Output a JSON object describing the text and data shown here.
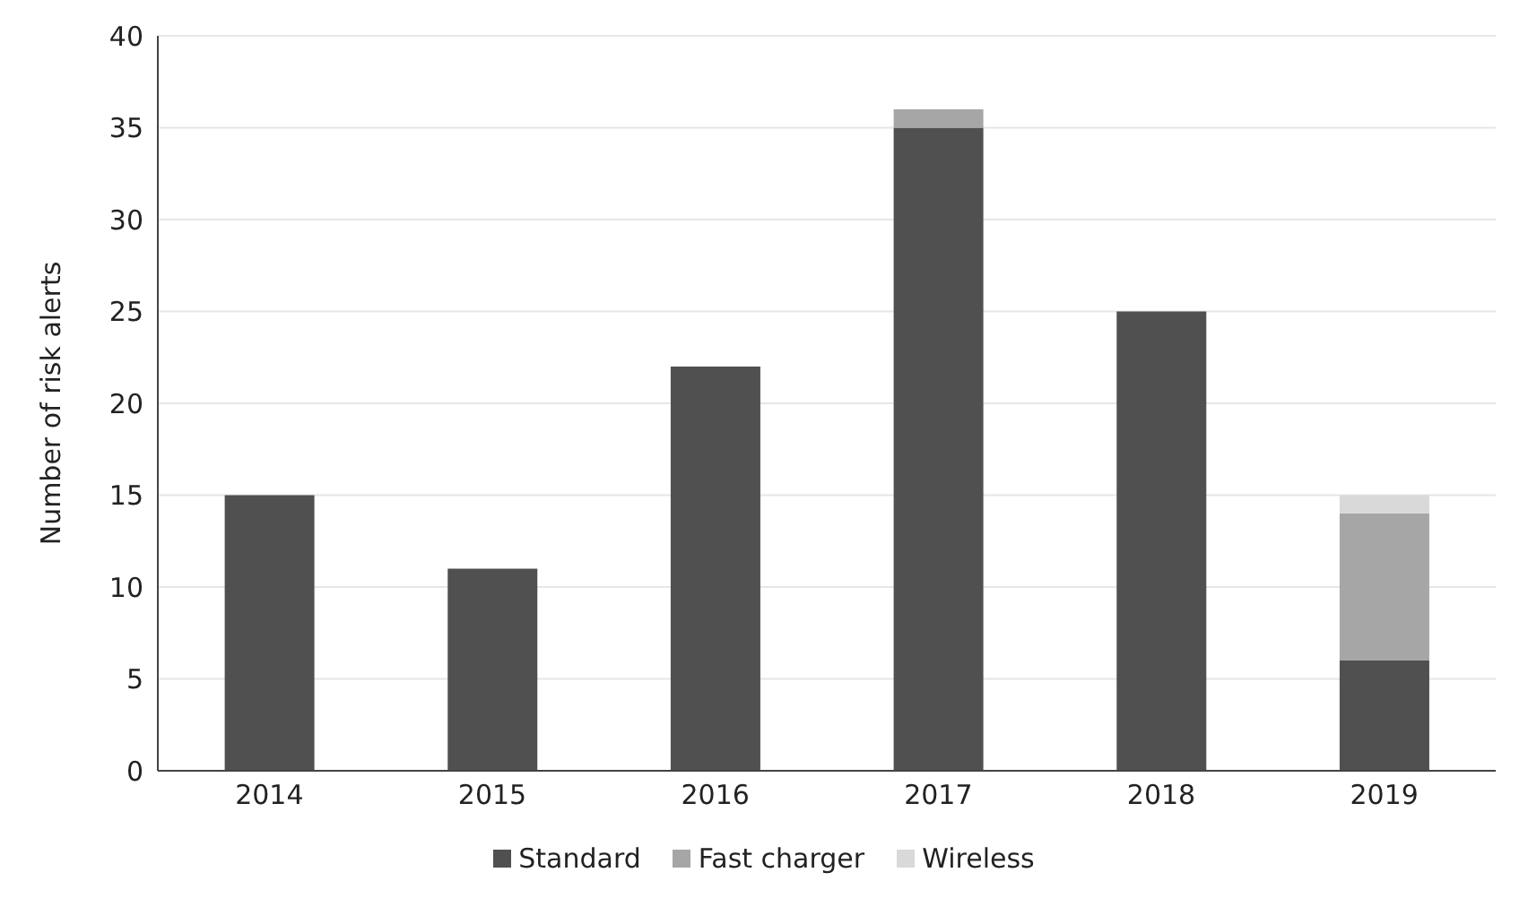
{
  "chart_data": {
    "type": "bar",
    "ylabel": "Number of risk alerts",
    "categories": [
      "2014",
      "2015",
      "2016",
      "2017",
      "2018",
      "2019"
    ],
    "series": [
      {
        "name": "Standard",
        "color": "#505050",
        "values": [
          15,
          11,
          22,
          35,
          25,
          6
        ]
      },
      {
        "name": "Fast charger",
        "color": "#a6a6a6",
        "values": [
          0,
          0,
          0,
          1,
          0,
          8
        ]
      },
      {
        "name": "Wireless",
        "color": "#d9d9d9",
        "values": [
          0,
          0,
          0,
          0,
          0,
          1
        ]
      }
    ],
    "stacked": true,
    "ylim": [
      0,
      40
    ],
    "yticks": [
      0,
      5,
      10,
      15,
      20,
      25,
      30,
      35,
      40
    ],
    "grid": "y",
    "legend": "bottom"
  }
}
